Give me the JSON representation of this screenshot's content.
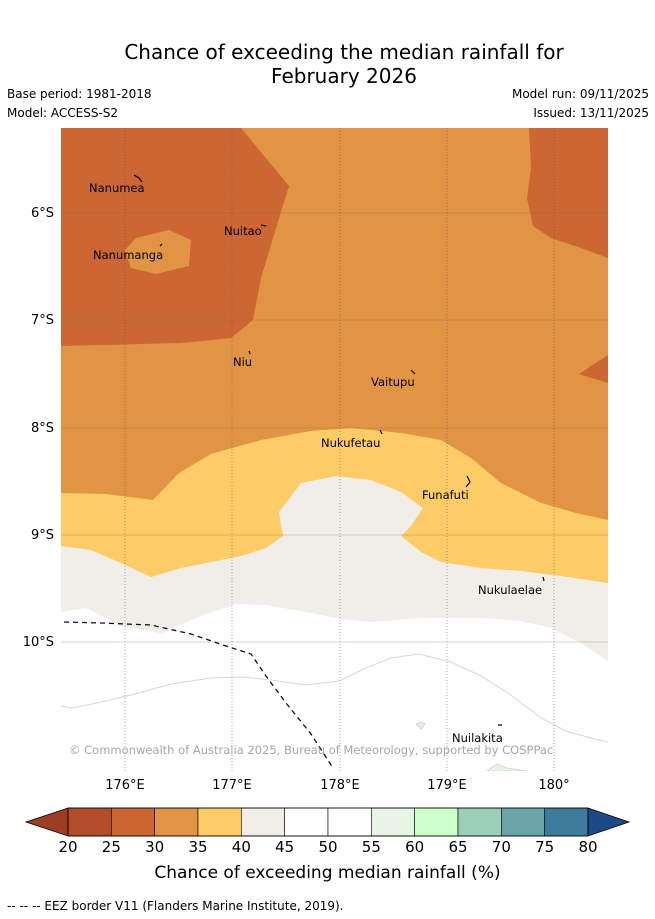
{
  "title_line1": "Chance of exceeding the median rainfall for",
  "title_line2": "February 2026",
  "base_period": "Base period: 1981-2018",
  "model": "Model: ACCESS-S2",
  "model_run": "Model run: 09/11/2025",
  "issued": "Issued: 13/11/2025",
  "lat_labels": [
    "6°S",
    "7°S",
    "8°S",
    "9°S",
    "10°S"
  ],
  "lon_labels": [
    "176°E",
    "177°E",
    "178°E",
    "179°E",
    "180°"
  ],
  "places": [
    "Nanumea",
    "Nuitao",
    "Nanumanga",
    "Niu",
    "Vaitupu",
    "Nukufetau",
    "Funafuti",
    "Nukulaelae",
    "Nuilakita"
  ],
  "copyright": "© Commonwealth of Australia 2025, Bureau of Meteorology, supported by COSPPac",
  "colorbar": {
    "ticks": [
      "20",
      "25",
      "30",
      "35",
      "40",
      "45",
      "50",
      "55",
      "60",
      "65",
      "70",
      "75",
      "80"
    ],
    "colors": [
      "#b24c2a",
      "#cc6633",
      "#e09444",
      "#fecc66",
      "#f1ede8",
      "#ffffff",
      "#ffffff",
      "#e8f5e6",
      "#ccffcc",
      "#9ccfb8",
      "#6aa4a8",
      "#3d7b9c"
    ],
    "low_color": "#9c3e21",
    "high_color": "#1a4b86",
    "label": "Chance of exceeding median rainfall (%)"
  },
  "legend_note": "--  --  -- EEZ border V11 (Flanders Marine Institute, 2019)."
}
